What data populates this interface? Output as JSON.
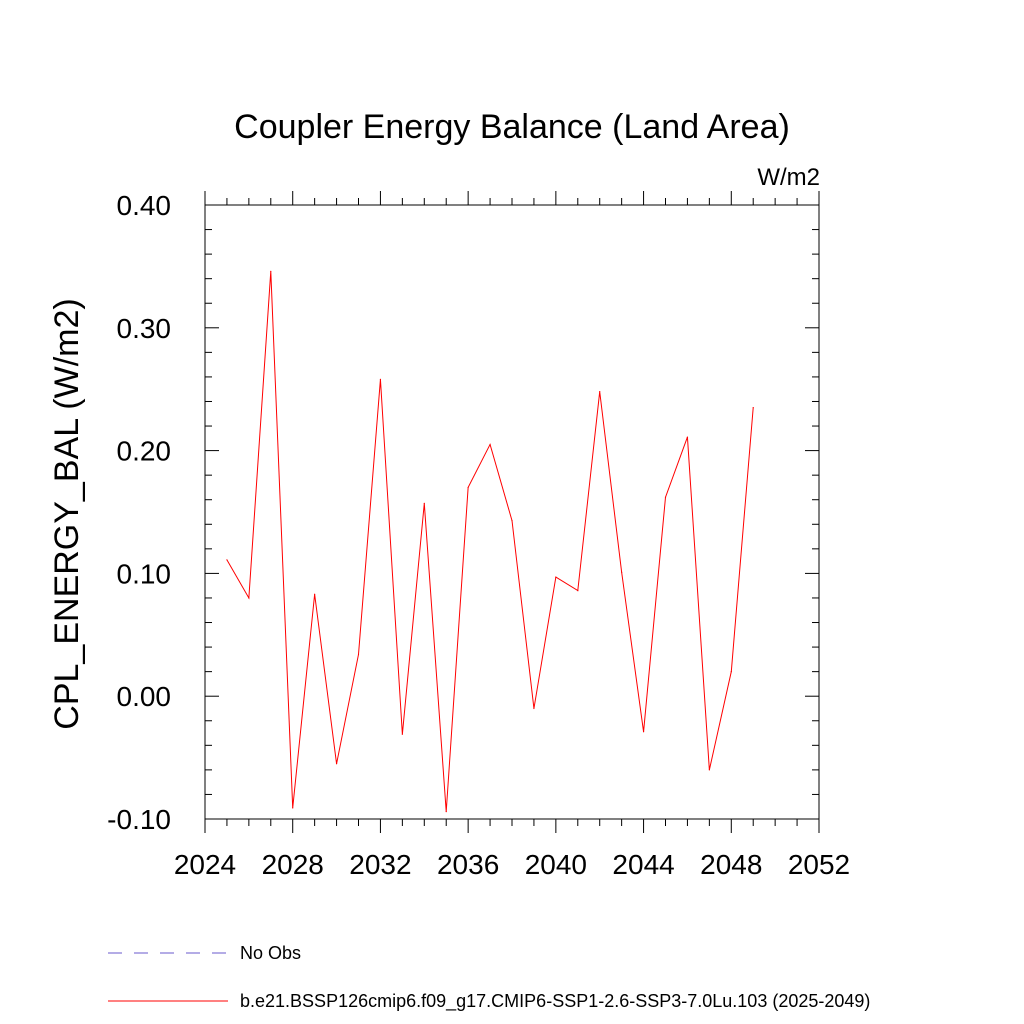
{
  "chart_data": {
    "type": "line",
    "title": "Coupler Energy Balance (Land Area)",
    "units_label": "W/m2",
    "ylabel": "CPL_ENERGY_BAL  (W/m2)",
    "xlabel": "",
    "xlim": [
      2024,
      2052
    ],
    "ylim": [
      -0.1,
      0.4
    ],
    "x_ticks": [
      2024,
      2028,
      2032,
      2036,
      2040,
      2044,
      2048,
      2052
    ],
    "x_tick_labels": [
      "2024",
      "2028",
      "2032",
      "2036",
      "2040",
      "2044",
      "2048",
      "2052"
    ],
    "y_ticks": [
      -0.1,
      0.0,
      0.1,
      0.2,
      0.3,
      0.4
    ],
    "y_tick_labels": [
      "-0.10",
      "0.00",
      "0.10",
      "0.20",
      "0.30",
      "0.40"
    ],
    "grid": false,
    "series": [
      {
        "name": "b.e21.BSSP126cmip6.f09_g17.CMIP6-SSP1-2.6-SSP3-7.0Lu.103 (2025-2049)",
        "color": "#ff0000",
        "x": [
          2025,
          2026,
          2027,
          2028,
          2029,
          2030,
          2031,
          2032,
          2033,
          2034,
          2035,
          2036,
          2037,
          2038,
          2039,
          2040,
          2041,
          2042,
          2043,
          2044,
          2045,
          2046,
          2047,
          2048,
          2049
        ],
        "values": [
          0.111,
          0.08,
          0.346,
          -0.091,
          0.083,
          -0.055,
          0.034,
          0.258,
          -0.031,
          0.157,
          -0.094,
          0.17,
          0.205,
          0.143,
          -0.01,
          0.097,
          0.086,
          0.248,
          0.101,
          -0.029,
          0.162,
          0.211,
          -0.06,
          0.02,
          0.235
        ]
      }
    ],
    "legend": [
      {
        "label": "No Obs",
        "style": "dashed",
        "color": "#6a5acd"
      },
      {
        "label": "b.e21.BSSP126cmip6.f09_g17.CMIP6-SSP1-2.6-SSP3-7.0Lu.103 (2025-2049)",
        "style": "solid",
        "color": "#ff0000"
      }
    ],
    "legend_position": "bottom-left"
  }
}
